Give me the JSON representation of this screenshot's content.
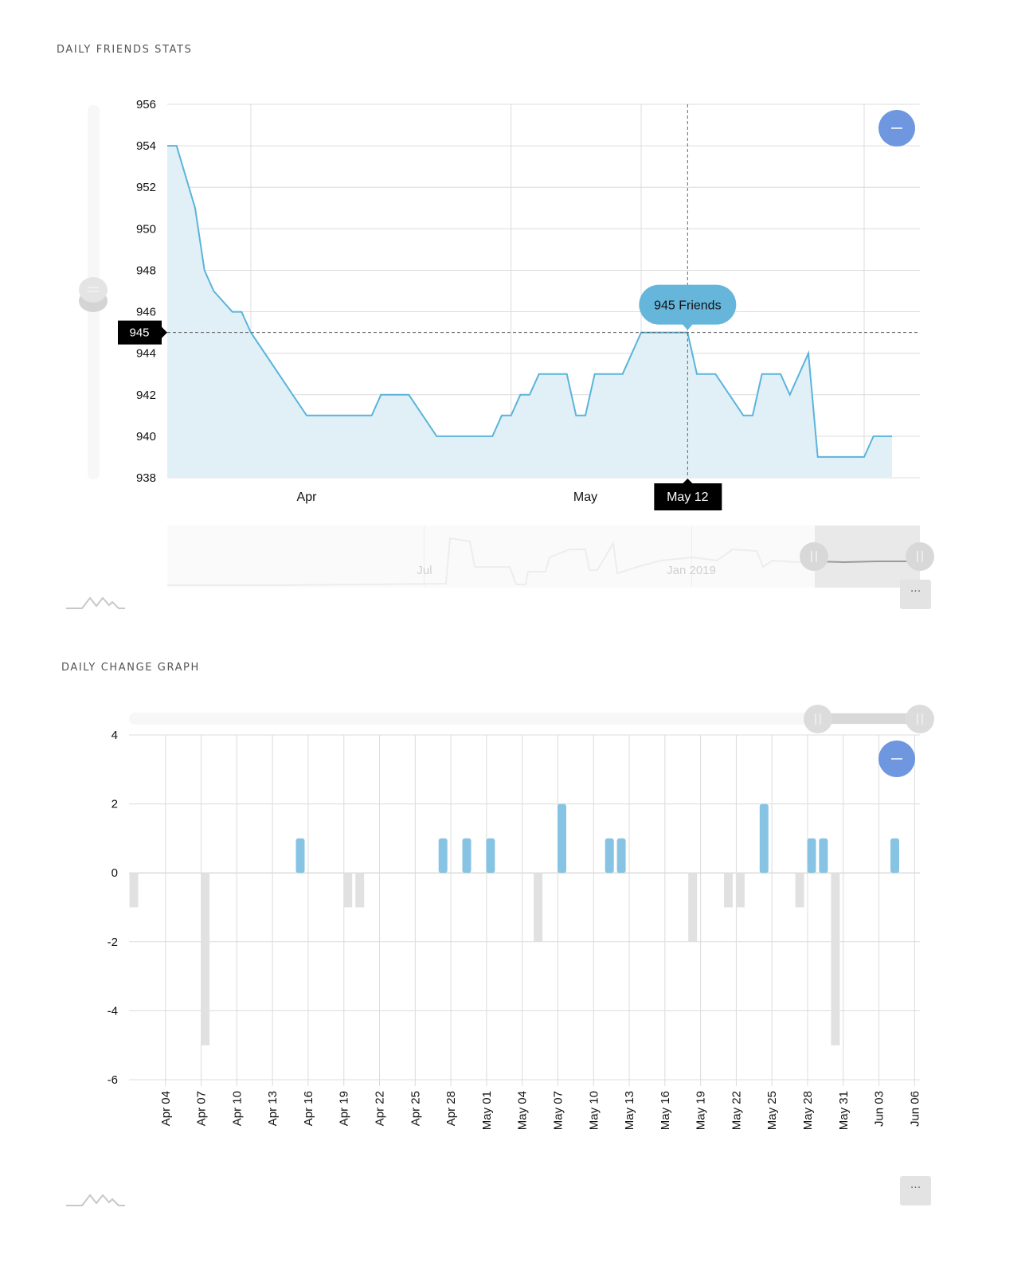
{
  "sections": {
    "friends_title": "DAILY FRIENDS STATS",
    "change_title": "DAILY CHANGE GRAPH"
  },
  "chart1": {
    "tooltip_label": "945 Friends",
    "crosshair_y_label": "945",
    "crosshair_x_label": "May 12",
    "x_ticks": [
      "Apr",
      "May"
    ],
    "navigator_labels": [
      "Jul",
      "Jan 2019"
    ],
    "zoom_icon": "minus-icon",
    "more_label": "···"
  },
  "chart2": {
    "zoom_icon": "minus-icon",
    "more_label": "···"
  },
  "colors": {
    "line": "#5ab4da",
    "area": "#e1f0f7",
    "positive_bar": "#87c4e4",
    "negative_bar": "#e1e1e1",
    "zoom_button": "#6e97df"
  },
  "chart_data": [
    {
      "type": "area",
      "title": "DAILY FRIENDS STATS",
      "ylim": [
        938,
        956
      ],
      "y_ticks": [
        938,
        940,
        942,
        944,
        946,
        948,
        950,
        952,
        954,
        956
      ],
      "x_range": [
        "2018-03-17",
        "2018-06-06"
      ],
      "x_tick_labels": [
        {
          "date": "2018-04-01",
          "label": "Apr"
        },
        {
          "date": "2018-05-01",
          "label": "May"
        }
      ],
      "grid": true,
      "series": [
        {
          "points": [
            [
              "2018-03-17",
              954
            ],
            [
              "2018-03-18",
              954
            ],
            [
              "2018-03-20",
              951
            ],
            [
              "2018-03-21",
              948
            ],
            [
              "2018-03-22",
              947
            ],
            [
              "2018-03-24",
              946
            ],
            [
              "2018-03-25",
              946
            ],
            [
              "2018-03-26",
              945
            ],
            [
              "2018-04-01",
              941
            ],
            [
              "2018-04-07",
              941
            ],
            [
              "2018-04-08",
              941
            ],
            [
              "2018-04-09",
              942
            ],
            [
              "2018-04-12",
              942
            ],
            [
              "2018-04-15",
              940
            ],
            [
              "2018-04-18",
              940
            ],
            [
              "2018-04-21",
              940
            ],
            [
              "2018-04-22",
              941
            ],
            [
              "2018-04-23",
              941
            ],
            [
              "2018-04-24",
              942
            ],
            [
              "2018-04-25",
              942
            ],
            [
              "2018-04-26",
              943
            ],
            [
              "2018-04-29",
              943
            ],
            [
              "2018-04-30",
              941
            ],
            [
              "2018-05-01",
              941
            ],
            [
              "2018-05-02",
              943
            ],
            [
              "2018-05-05",
              943
            ],
            [
              "2018-05-07",
              945
            ],
            [
              "2018-05-12",
              945
            ],
            [
              "2018-05-13",
              943
            ],
            [
              "2018-05-15",
              943
            ],
            [
              "2018-05-18",
              941
            ],
            [
              "2018-05-19",
              941
            ],
            [
              "2018-05-20",
              943
            ],
            [
              "2018-05-22",
              943
            ],
            [
              "2018-05-23",
              942
            ],
            [
              "2018-05-25",
              944
            ],
            [
              "2018-05-26",
              939
            ],
            [
              "2018-05-30",
              939
            ],
            [
              "2018-05-31",
              939
            ],
            [
              "2018-06-01",
              940
            ],
            [
              "2018-06-03",
              940
            ]
          ]
        }
      ],
      "crosshair": {
        "date": "2018-05-12",
        "value": 945,
        "tooltip": "945 Friends"
      }
    },
    {
      "type": "bar",
      "title": "DAILY CHANGE GRAPH",
      "ylim": [
        -6,
        4
      ],
      "y_ticks": [
        -6,
        -4,
        -2,
        0,
        2,
        4
      ],
      "x_range": [
        "2018-04-01",
        "2018-06-06"
      ],
      "x_ticks": [
        "Apr 04",
        "Apr 07",
        "Apr 10",
        "Apr 13",
        "Apr 16",
        "Apr 19",
        "Apr 22",
        "Apr 25",
        "Apr 28",
        "May 01",
        "May 04",
        "May 07",
        "May 10",
        "May 13",
        "May 16",
        "May 19",
        "May 22",
        "May 25",
        "May 28",
        "May 31",
        "Jun 03",
        "Jun 06"
      ],
      "grid": true,
      "bars": [
        [
          "2018-04-01",
          -1
        ],
        [
          "2018-04-07",
          -5
        ],
        [
          "2018-04-15",
          1
        ],
        [
          "2018-04-19",
          -1
        ],
        [
          "2018-04-20",
          -1
        ],
        [
          "2018-04-27",
          1
        ],
        [
          "2018-04-29",
          1
        ],
        [
          "2018-05-01",
          1
        ],
        [
          "2018-05-05",
          -2
        ],
        [
          "2018-05-07",
          2
        ],
        [
          "2018-05-11",
          1
        ],
        [
          "2018-05-12",
          1
        ],
        [
          "2018-05-18",
          -2
        ],
        [
          "2018-05-21",
          -1
        ],
        [
          "2018-05-22",
          -1
        ],
        [
          "2018-05-24",
          2
        ],
        [
          "2018-05-27",
          -1
        ],
        [
          "2018-05-28",
          1
        ],
        [
          "2018-05-29",
          1
        ],
        [
          "2018-05-30",
          -5
        ],
        [
          "2018-06-04",
          1
        ]
      ]
    }
  ]
}
